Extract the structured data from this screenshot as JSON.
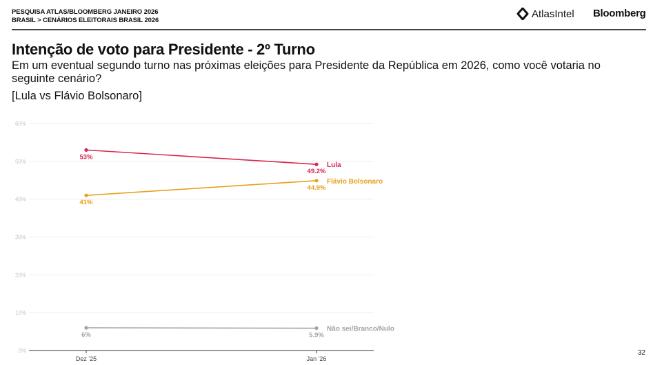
{
  "header": {
    "line1": "PESQUISA ATLAS/BLOOMBERG JANEIRO 2026",
    "line2": "BRASIL > CENÁRIOS ELEITORAIS BRASIL 2026",
    "logos": [
      "AtlasIntel",
      "Bloomberg"
    ]
  },
  "title": "Intenção de voto para Presidente - 2º Turno",
  "subtitle": "Em um eventual segundo turno nas próximas eleições para Presidente da República em 2026, como você votaria no seguinte cenário?",
  "scenario": "[Lula vs Flávio Bolsonaro]",
  "page_number": "32",
  "chart_data": {
    "type": "line",
    "categories": [
      "Dez '25",
      "Jan '26"
    ],
    "ylim": [
      0,
      60
    ],
    "yticks": [
      0,
      10,
      20,
      30,
      40,
      50,
      60
    ],
    "ytick_labels": [
      "0%",
      "10%",
      "20%",
      "30%",
      "40%",
      "50%",
      "60%"
    ],
    "grid": true,
    "legend": "direct labels at line ends",
    "series": [
      {
        "name": "Lula",
        "values": [
          53,
          49.2
        ],
        "labels": [
          "53%",
          "49.2%"
        ],
        "color": "#d8264f"
      },
      {
        "name": "Flávio Bolsonaro",
        "values": [
          41,
          44.9
        ],
        "labels": [
          "41%",
          "44.9%"
        ],
        "color": "#e4a21b"
      },
      {
        "name": "Não sei/Branco/Nulo",
        "values": [
          6,
          5.9
        ],
        "labels": [
          "6%",
          "5.9%"
        ],
        "color": "#a3a3a3"
      }
    ]
  }
}
